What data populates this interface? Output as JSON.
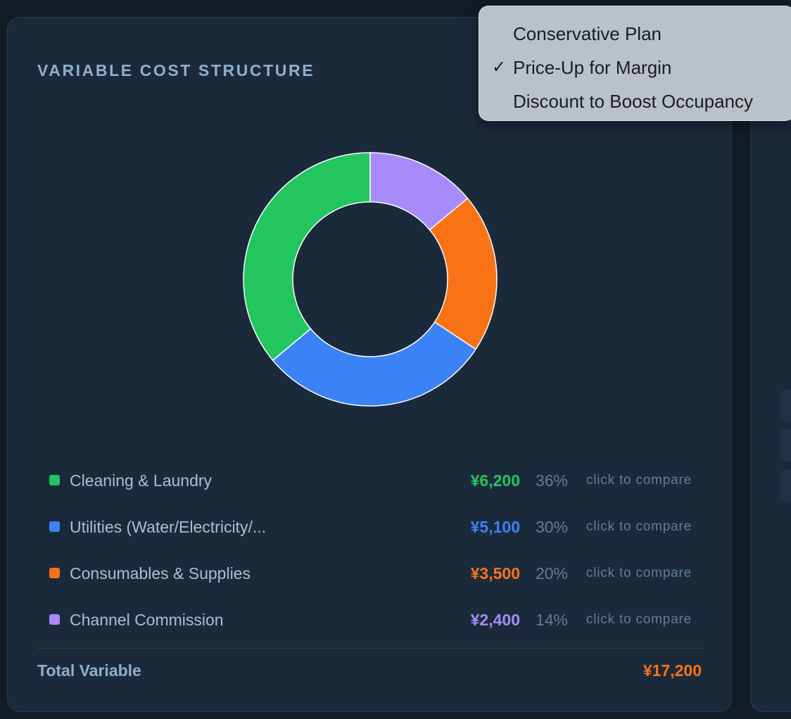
{
  "card": {
    "title": "VARIABLE COST STRUCTURE",
    "total_label": "Total Variable",
    "total_value": "¥17,200"
  },
  "chart_data": {
    "type": "pie",
    "donut": true,
    "categories": [
      "Cleaning & Laundry",
      "Utilities (Water/Electricity/...",
      "Consumables & Supplies",
      "Channel Commission"
    ],
    "values": [
      6200,
      5100,
      3500,
      2400
    ],
    "colors": [
      "#22c55e",
      "#3b82f6",
      "#f97316",
      "#a78bfa"
    ],
    "start_angle_deg": 90,
    "direction": "counterclockwise"
  },
  "legend": [
    {
      "label": "Cleaning & Laundry",
      "value": "¥6,200",
      "pct": "36%",
      "compare": "click to compare",
      "color": "#22c55e"
    },
    {
      "label": "Utilities (Water/Electricity/...",
      "value": "¥5,100",
      "pct": "30%",
      "compare": "click to compare",
      "color": "#3b82f6"
    },
    {
      "label": "Consumables & Supplies",
      "value": "¥3,500",
      "pct": "20%",
      "compare": "click to compare",
      "color": "#f97316"
    },
    {
      "label": "Channel Commission",
      "value": "¥2,400",
      "pct": "14%",
      "compare": "click to compare",
      "color": "#a78bfa"
    }
  ],
  "scenario_menu": {
    "items": [
      {
        "label": "Conservative Plan",
        "checked": false,
        "check_mark": ""
      },
      {
        "label": "Price-Up for Margin",
        "checked": true,
        "check_mark": "✓"
      },
      {
        "label": "Discount to Boost Occupancy",
        "checked": false,
        "check_mark": ""
      }
    ]
  }
}
